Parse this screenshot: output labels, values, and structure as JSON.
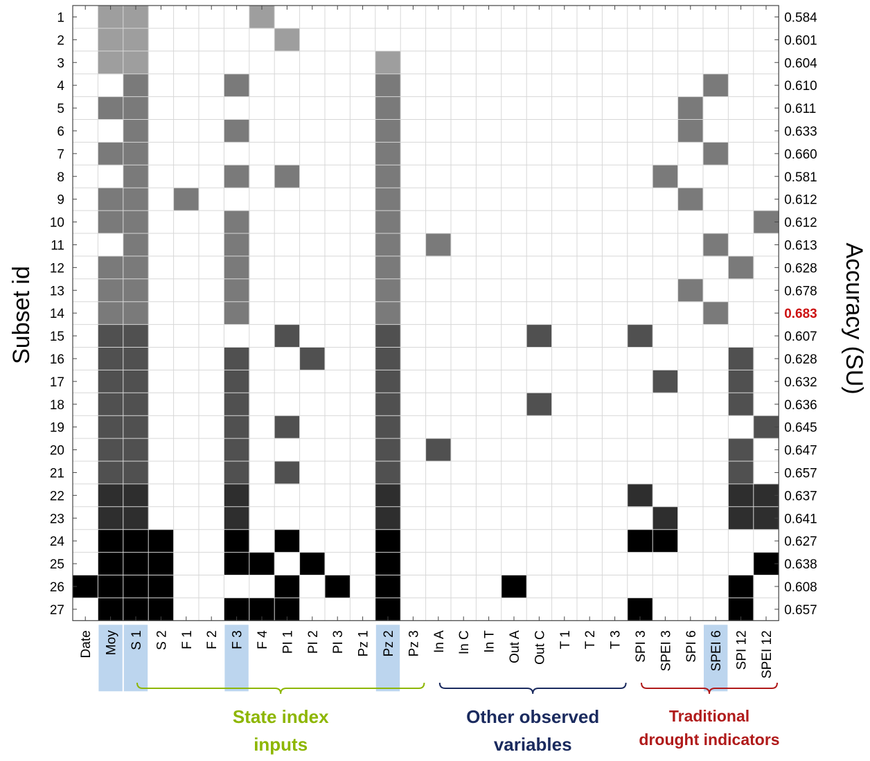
{
  "chart_data": {
    "type": "heatmap",
    "ylabel": "Subset id",
    "ylabel_right": "Accuracy (SU)",
    "columns": [
      "Date",
      "Moy",
      "S 1",
      "S 2",
      "F 1",
      "F 2",
      "F 3",
      "F 4",
      "PI 1",
      "PI 2",
      "PI 3",
      "Pz 1",
      "Pz 2",
      "Pz 3",
      "In A",
      "In C",
      "In T",
      "Out A",
      "Out C",
      "T 1",
      "T 2",
      "T 3",
      "SPI 3",
      "SPEI 3",
      "SPI 6",
      "SPEI 6",
      "SPI 12",
      "SPEI 12"
    ],
    "highlighted_columns": [
      "Moy",
      "S 1",
      "F 3",
      "Pz 2",
      "SPEI 6"
    ],
    "rows": [
      {
        "id": 1,
        "accuracy": "0.584",
        "selected": [
          "Moy",
          "S 1",
          "F 4"
        ]
      },
      {
        "id": 2,
        "accuracy": "0.601",
        "selected": [
          "Moy",
          "S 1",
          "PI 1"
        ]
      },
      {
        "id": 3,
        "accuracy": "0.604",
        "selected": [
          "Moy",
          "S 1",
          "Pz 2"
        ]
      },
      {
        "id": 4,
        "accuracy": "0.610",
        "selected": [
          "S 1",
          "F 3",
          "Pz 2",
          "SPEI 6"
        ]
      },
      {
        "id": 5,
        "accuracy": "0.611",
        "selected": [
          "Moy",
          "S 1",
          "Pz 2",
          "SPI 6"
        ]
      },
      {
        "id": 6,
        "accuracy": "0.633",
        "selected": [
          "S 1",
          "F 3",
          "Pz 2",
          "SPI 6"
        ]
      },
      {
        "id": 7,
        "accuracy": "0.660",
        "selected": [
          "Moy",
          "S 1",
          "Pz 2",
          "SPEI 6"
        ]
      },
      {
        "id": 8,
        "accuracy": "0.581",
        "selected": [
          "S 1",
          "F 3",
          "PI 1",
          "Pz 2",
          "SPEI 3"
        ]
      },
      {
        "id": 9,
        "accuracy": "0.612",
        "selected": [
          "Moy",
          "S 1",
          "F 1",
          "Pz 2",
          "SPI 6"
        ]
      },
      {
        "id": 10,
        "accuracy": "0.612",
        "selected": [
          "Moy",
          "S 1",
          "F 3",
          "Pz 2",
          "SPEI 12"
        ]
      },
      {
        "id": 11,
        "accuracy": "0.613",
        "selected": [
          "S 1",
          "F 3",
          "Pz 2",
          "In A",
          "SPEI 6"
        ]
      },
      {
        "id": 12,
        "accuracy": "0.628",
        "selected": [
          "Moy",
          "S 1",
          "F 3",
          "Pz 2",
          "SPI 12"
        ]
      },
      {
        "id": 13,
        "accuracy": "0.678",
        "selected": [
          "Moy",
          "S 1",
          "F 3",
          "Pz 2",
          "SPI 6"
        ]
      },
      {
        "id": 14,
        "accuracy": "0.683",
        "selected": [
          "Moy",
          "S 1",
          "F 3",
          "Pz 2",
          "SPEI 6"
        ]
      },
      {
        "id": 15,
        "accuracy": "0.607",
        "selected": [
          "Moy",
          "S 1",
          "PI 1",
          "Pz 2",
          "Out C",
          "SPI 3"
        ]
      },
      {
        "id": 16,
        "accuracy": "0.628",
        "selected": [
          "Moy",
          "S 1",
          "F 3",
          "PI 2",
          "Pz 2",
          "SPI 12"
        ]
      },
      {
        "id": 17,
        "accuracy": "0.632",
        "selected": [
          "Moy",
          "S 1",
          "F 3",
          "Pz 2",
          "SPEI 3",
          "SPI 12"
        ]
      },
      {
        "id": 18,
        "accuracy": "0.636",
        "selected": [
          "Moy",
          "S 1",
          "F 3",
          "Pz 2",
          "Out C",
          "SPI 12"
        ]
      },
      {
        "id": 19,
        "accuracy": "0.645",
        "selected": [
          "Moy",
          "S 1",
          "F 3",
          "PI 1",
          "Pz 2",
          "SPEI 12"
        ]
      },
      {
        "id": 20,
        "accuracy": "0.647",
        "selected": [
          "Moy",
          "S 1",
          "F 3",
          "Pz 2",
          "In A",
          "SPI 12"
        ]
      },
      {
        "id": 21,
        "accuracy": "0.657",
        "selected": [
          "Moy",
          "S 1",
          "F 3",
          "PI 1",
          "Pz 2",
          "SPI 12"
        ]
      },
      {
        "id": 22,
        "accuracy": "0.637",
        "selected": [
          "Moy",
          "S 1",
          "F 3",
          "Pz 2",
          "SPI 3",
          "SPI 12",
          "SPEI 12"
        ]
      },
      {
        "id": 23,
        "accuracy": "0.641",
        "selected": [
          "Moy",
          "S 1",
          "F 3",
          "Pz 2",
          "SPEI 3",
          "SPI 12",
          "SPEI 12"
        ]
      },
      {
        "id": 24,
        "accuracy": "0.627",
        "selected": [
          "Moy",
          "S 1",
          "S 2",
          "F 3",
          "PI 1",
          "Pz 2",
          "SPI 3",
          "SPEI 3"
        ]
      },
      {
        "id": 25,
        "accuracy": "0.638",
        "selected": [
          "Moy",
          "S 1",
          "S 2",
          "F 3",
          "F 4",
          "PI 2",
          "Pz 2",
          "SPEI 12"
        ]
      },
      {
        "id": 26,
        "accuracy": "0.608",
        "selected": [
          "Date",
          "Moy",
          "S 1",
          "S 2",
          "PI 1",
          "PI 3",
          "Pz 2",
          "Out A",
          "SPI 12"
        ]
      },
      {
        "id": 27,
        "accuracy": "0.657",
        "selected": [
          "Moy",
          "S 1",
          "S 2",
          "F 3",
          "F 4",
          "PI 1",
          "Pz 2",
          "SPI 3",
          "SPI 12"
        ]
      }
    ],
    "best_accuracy": "0.683",
    "groups": [
      {
        "label_lines": [
          "State index",
          "inputs"
        ],
        "from": "S 1",
        "to": "Pz 3",
        "color": "#8db600"
      },
      {
        "label_lines": [
          "Other observed",
          "variables"
        ],
        "from": "In A",
        "to": "T 3",
        "color": "#1a2a5e"
      },
      {
        "label_lines": [
          "Traditional",
          "drought indicators"
        ],
        "from": "SPI 3",
        "to": "SPEI 12",
        "color": "#b01a1a"
      }
    ],
    "highlight_color": "#bcd5ee",
    "grid": true
  }
}
